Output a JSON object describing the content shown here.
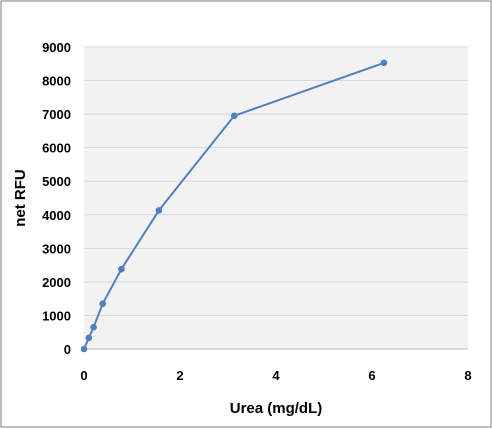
{
  "chart_data": {
    "type": "line",
    "xlabel": "Urea (mg/dL)",
    "ylabel": "net RFU",
    "xlim": [
      0,
      8
    ],
    "ylim": [
      0,
      9000
    ],
    "xticks": [
      0,
      2,
      4,
      6,
      8
    ],
    "yticks": [
      0,
      1000,
      2000,
      3000,
      4000,
      5000,
      6000,
      7000,
      8000,
      9000
    ],
    "grid": "horizontal",
    "legend": "none",
    "series": [
      {
        "x": [
          0,
          0.1,
          0.2,
          0.39,
          0.78,
          1.56,
          3.13,
          6.25
        ],
        "y": [
          0,
          330,
          650,
          1350,
          2380,
          4130,
          6950,
          8530
        ]
      }
    ],
    "colors": {
      "series": "#4f81bd",
      "plot_background": "#f2f2f2",
      "grid": "#d9d9d9",
      "frame": "#7f7f7f"
    }
  }
}
